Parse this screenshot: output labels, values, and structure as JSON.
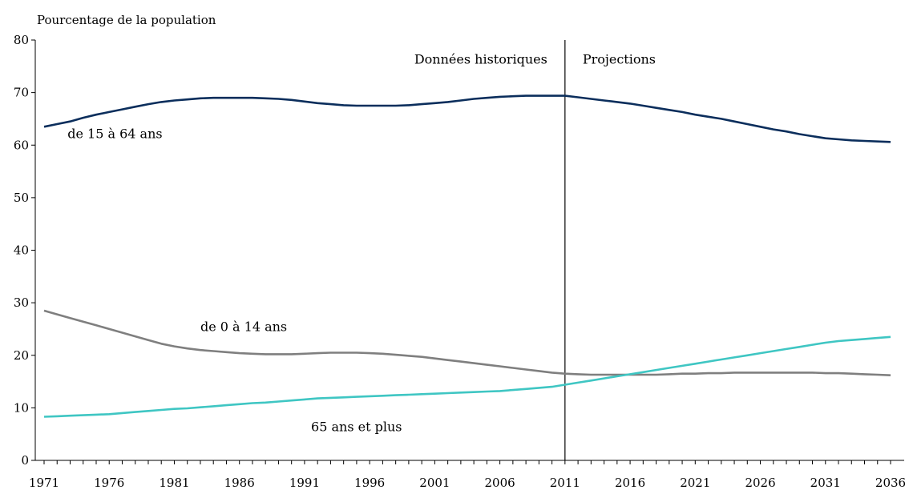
{
  "chart_data": {
    "type": "line",
    "ylabel": "Pourcentage de la population",
    "xlabel": "",
    "xlim": [
      1971,
      2036
    ],
    "ylim": [
      0,
      80
    ],
    "y_ticks": [
      "0",
      "10",
      "20",
      "30",
      "40",
      "50",
      "60",
      "70",
      "80"
    ],
    "x_ticks": [
      "1971",
      "1976",
      "1981",
      "1986",
      "1991",
      "1996",
      "2001",
      "2006",
      "2011",
      "2016",
      "2021",
      "2026",
      "2031",
      "2036"
    ],
    "divider_year": 2011,
    "annotations": {
      "historical": "Données historiques",
      "projections": "Projections"
    },
    "grid": false,
    "legend": "none",
    "x": [
      1971,
      1972,
      1973,
      1974,
      1975,
      1976,
      1977,
      1978,
      1979,
      1980,
      1981,
      1982,
      1983,
      1984,
      1985,
      1986,
      1987,
      1988,
      1989,
      1990,
      1991,
      1992,
      1993,
      1994,
      1995,
      1996,
      1997,
      1998,
      1999,
      2000,
      2001,
      2002,
      2003,
      2004,
      2005,
      2006,
      2007,
      2008,
      2009,
      2010,
      2011,
      2012,
      2013,
      2014,
      2015,
      2016,
      2017,
      2018,
      2019,
      2020,
      2021,
      2022,
      2023,
      2024,
      2025,
      2026,
      2027,
      2028,
      2029,
      2030,
      2031,
      2032,
      2033,
      2034,
      2035,
      2036
    ],
    "series": [
      {
        "name": "de 15 à 64 ans",
        "color": "#0b2e5c",
        "values": [
          63.5,
          64.0,
          64.5,
          65.2,
          65.8,
          66.3,
          66.8,
          67.3,
          67.8,
          68.2,
          68.5,
          68.7,
          68.9,
          69.0,
          69.0,
          69.0,
          69.0,
          68.9,
          68.8,
          68.6,
          68.3,
          68.0,
          67.8,
          67.6,
          67.5,
          67.5,
          67.5,
          67.5,
          67.6,
          67.8,
          68.0,
          68.2,
          68.5,
          68.8,
          69.0,
          69.2,
          69.3,
          69.4,
          69.4,
          69.4,
          69.4,
          69.1,
          68.8,
          68.5,
          68.2,
          67.9,
          67.5,
          67.1,
          66.7,
          66.3,
          65.8,
          65.4,
          65.0,
          64.5,
          64.0,
          63.5,
          63.0,
          62.6,
          62.1,
          61.7,
          61.3,
          61.1,
          60.9,
          60.8,
          60.7,
          60.6
        ]
      },
      {
        "name": "de 0 à 14 ans",
        "color": "#7f7f7f",
        "values": [
          28.5,
          27.8,
          27.1,
          26.4,
          25.7,
          25.0,
          24.3,
          23.6,
          22.9,
          22.2,
          21.7,
          21.3,
          21.0,
          20.8,
          20.6,
          20.4,
          20.3,
          20.2,
          20.2,
          20.2,
          20.3,
          20.4,
          20.5,
          20.5,
          20.5,
          20.4,
          20.3,
          20.1,
          19.9,
          19.7,
          19.4,
          19.1,
          18.8,
          18.5,
          18.2,
          17.9,
          17.6,
          17.3,
          17.0,
          16.7,
          16.5,
          16.4,
          16.3,
          16.3,
          16.3,
          16.3,
          16.3,
          16.3,
          16.4,
          16.5,
          16.5,
          16.6,
          16.6,
          16.7,
          16.7,
          16.7,
          16.7,
          16.7,
          16.7,
          16.7,
          16.6,
          16.6,
          16.5,
          16.4,
          16.3,
          16.2
        ]
      },
      {
        "name": "65 ans et plus",
        "color": "#3fc6c3",
        "values": [
          8.3,
          8.4,
          8.5,
          8.6,
          8.7,
          8.8,
          9.0,
          9.2,
          9.4,
          9.6,
          9.8,
          9.9,
          10.1,
          10.3,
          10.5,
          10.7,
          10.9,
          11.0,
          11.2,
          11.4,
          11.6,
          11.8,
          11.9,
          12.0,
          12.1,
          12.2,
          12.3,
          12.4,
          12.5,
          12.6,
          12.7,
          12.8,
          12.9,
          13.0,
          13.1,
          13.2,
          13.4,
          13.6,
          13.8,
          14.0,
          14.4,
          14.8,
          15.2,
          15.6,
          16.0,
          16.4,
          16.8,
          17.2,
          17.6,
          18.0,
          18.4,
          18.8,
          19.2,
          19.6,
          20.0,
          20.4,
          20.8,
          21.2,
          21.6,
          22.0,
          22.4,
          22.7,
          22.9,
          23.1,
          23.3,
          23.5
        ]
      }
    ]
  }
}
